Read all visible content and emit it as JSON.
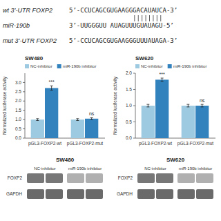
{
  "chart_data": [
    {
      "type": "text",
      "annotations": [
        "wt 3’-UTR FOXP2",
        "5’-CCUCAGCGUGAAGGGACAUAUCA-3’",
        "miR-190b",
        "3’-UUGGGUU AUAGUUUGUAUAGU-5’",
        "mut 3’-UTR FOXP2",
        "5’-CCUCAGCGUGAAGGGUUUAUAGA-3’"
      ]
    },
    {
      "type": "bar",
      "title": "SW480",
      "y_label": "Normalized luciferase activity",
      "categories": [
        "pGL3-FOXP2-wt",
        "pGL3-FOXP2-mut"
      ],
      "series": [
        {
          "name": "NC-inhibitor",
          "color": "#9ecae1",
          "values": [
            1.0,
            1.0
          ],
          "errors": [
            0.05,
            0.05
          ]
        },
        {
          "name": "miR-190b inhibitor",
          "color": "#3182bd",
          "values": [
            2.7,
            1.05
          ],
          "errors": [
            0.12,
            0.05
          ]
        }
      ],
      "ylim": [
        0,
        3.5
      ],
      "yticks": [
        {
          "value": 0,
          "label": "0.0"
        },
        0.5,
        {
          "value": 1,
          "label": "1.0"
        },
        1.5,
        {
          "value": 2,
          "label": "2.0"
        },
        2.5,
        {
          "value": 3,
          "label": "3.0"
        }
      ],
      "annotations": [
        "***",
        "ns"
      ],
      "legend": "top"
    },
    {
      "type": "bar",
      "title": "SW620",
      "y_label": "Normalized luciferase activity",
      "categories": [
        "pGL3-FOXP2-wt",
        "pGL3-FOXP2-mut"
      ],
      "series": [
        {
          "name": "NC-inhibitor",
          "color": "#9ecae1",
          "values": [
            1.0,
            1.0
          ],
          "errors": [
            0.04,
            0.04
          ]
        },
        {
          "name": "miR-190b inhibitor",
          "color": "#3182bd",
          "values": [
            1.8,
            1.0
          ],
          "errors": [
            0.05,
            0.04
          ]
        }
      ],
      "ylim": [
        0.0,
        2.0
      ],
      "yticks": [
        {
          "value": 0,
          "label": "0.0"
        },
        0.5,
        {
          "value": 1,
          "label": "1.0"
        },
        1.5,
        {
          "value": 2,
          "label": "2.0"
        }
      ],
      "annotations": [
        "***",
        "ns"
      ],
      "legend": "top"
    },
    {
      "type": "blot",
      "title": "SW480",
      "categories": [
        "NC-inhibitor",
        "miR-190b inhibitor"
      ],
      "annotations": [
        "FOXP2",
        "GAPDH"
      ]
    },
    {
      "type": "blot",
      "title": "SW620",
      "categories": [
        "NC-inhibitor",
        "miR-190b inhibitor"
      ],
      "annotations": [
        "FOXP2",
        "GAPDH"
      ]
    }
  ]
}
